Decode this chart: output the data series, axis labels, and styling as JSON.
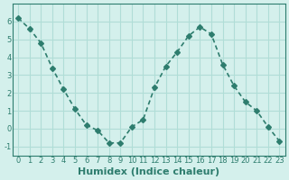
{
  "x": [
    0,
    1,
    2,
    3,
    4,
    5,
    6,
    7,
    8,
    9,
    10,
    11,
    12,
    13,
    14,
    15,
    16,
    17,
    18,
    19,
    20,
    21,
    22,
    23
  ],
  "y": [
    6.2,
    5.6,
    4.8,
    3.4,
    2.2,
    1.1,
    0.2,
    -0.1,
    -0.8,
    -0.8,
    0.1,
    0.5,
    2.3,
    3.5,
    4.3,
    5.2,
    5.7,
    5.3,
    3.6,
    2.4,
    1.5,
    1.0,
    0.1,
    -0.7
  ],
  "line_color": "#2e7d6e",
  "marker": "D",
  "marker_size": 3,
  "line_width": 1.2,
  "xlabel": "Humidex (Indice chaleur)",
  "xlabel_fontsize": 8,
  "xlabel_fontweight": "bold",
  "bg_color": "#d4f0ec",
  "grid_color": "#b0ddd7",
  "tick_color": "#2e7d6e",
  "ylim": [
    -1.5,
    7
  ],
  "xlim": [
    -0.5,
    23.5
  ],
  "yticks": [
    -1,
    0,
    1,
    2,
    3,
    4,
    5,
    6
  ],
  "xtick_labels": [
    "0",
    "1",
    "2",
    "3",
    "4",
    "5",
    "6",
    "7",
    "8",
    "9",
    "10",
    "11",
    "12",
    "13",
    "14",
    "15",
    "16",
    "17",
    "18",
    "19",
    "20",
    "21",
    "22",
    "23"
  ],
  "tick_fontsize": 6
}
